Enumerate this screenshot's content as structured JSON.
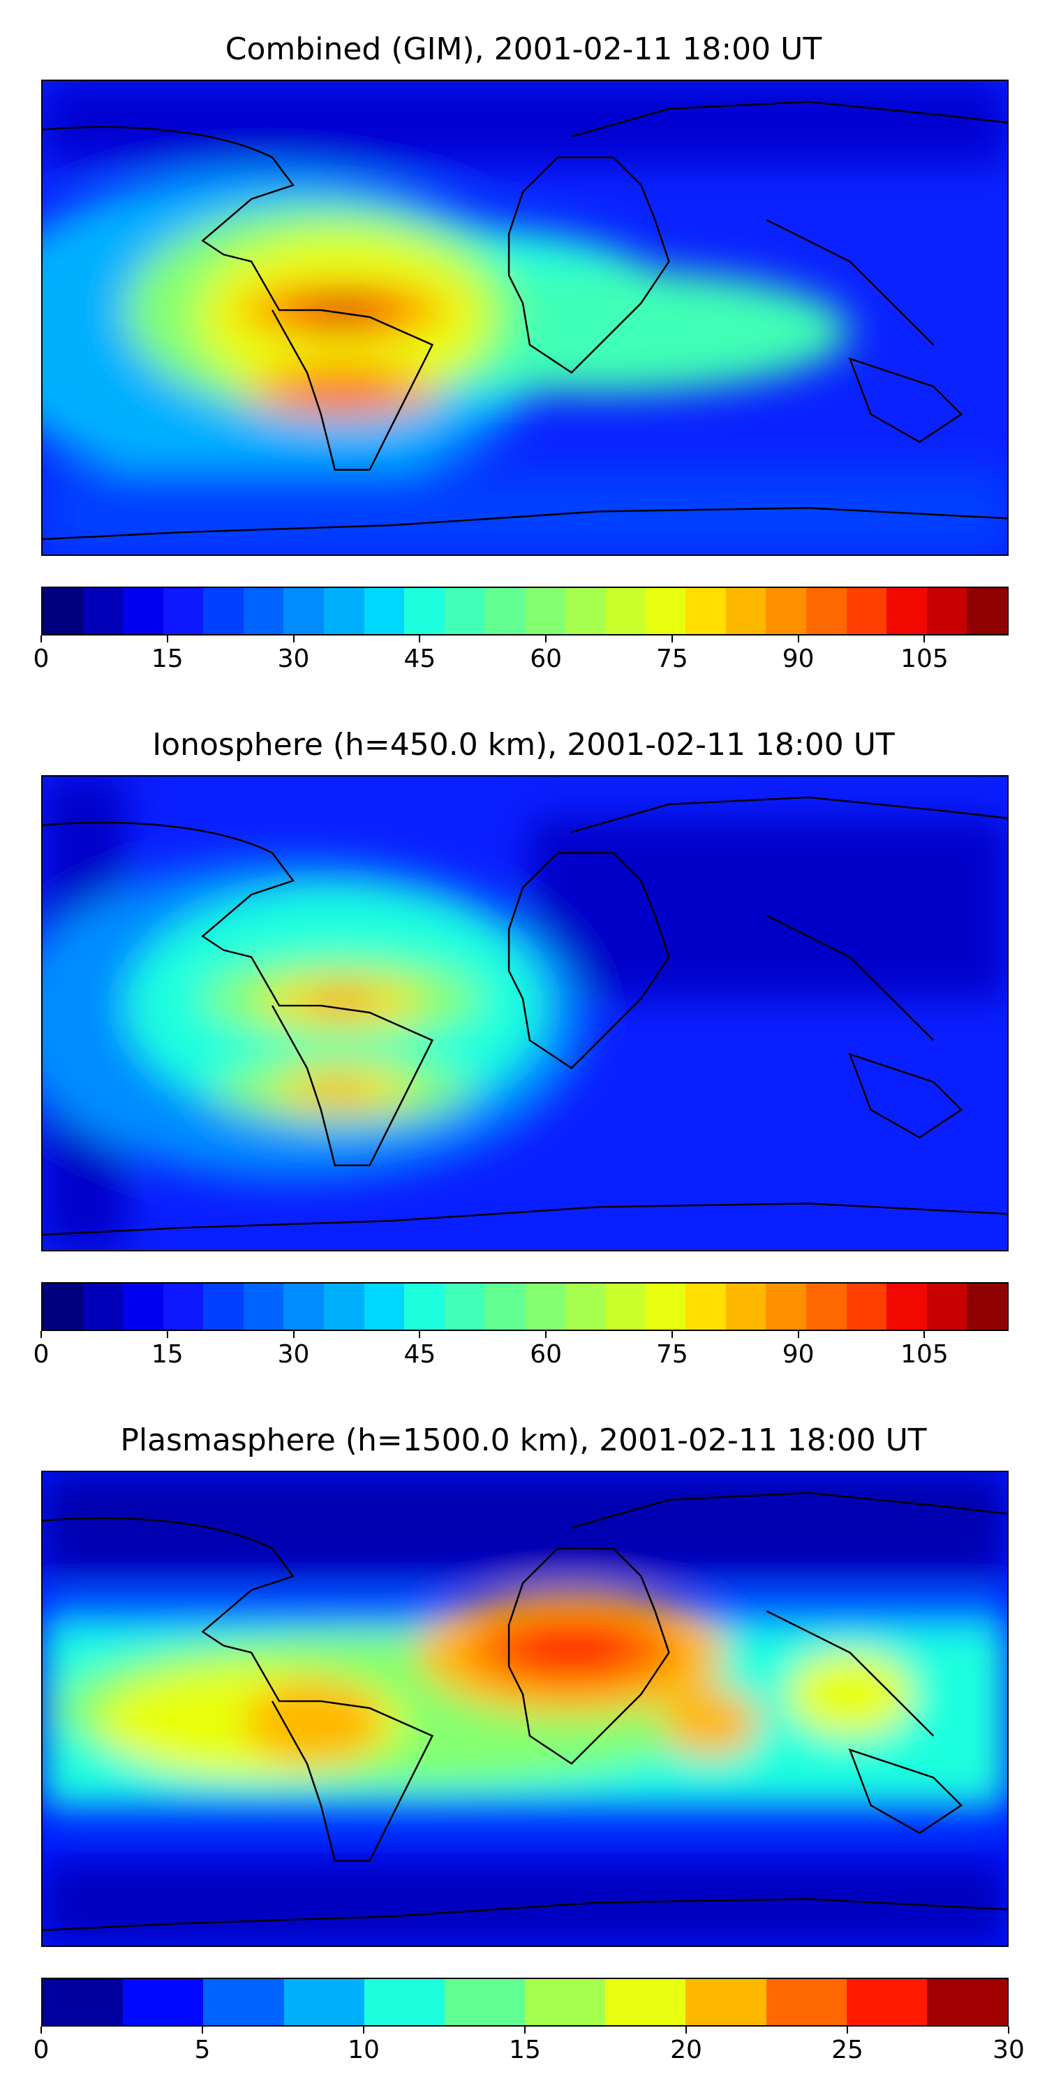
{
  "panels": [
    {
      "title": "Combined (GIM), 2001-02-11 18:00 UT",
      "map_name": "combined-gim-map",
      "background": "#1a2cff",
      "colorbar": {
        "colors": [
          "#00007f",
          "#0000b8",
          "#0000f1",
          "#0d18ff",
          "#0040ff",
          "#0064ff",
          "#008cff",
          "#00b0ff",
          "#00d8ff",
          "#1effde",
          "#41ffb6",
          "#62ff93",
          "#84ff70",
          "#a6ff4d",
          "#c9ff2a",
          "#e8ff0f",
          "#ffde00",
          "#ffb800",
          "#ff9000",
          "#ff6800",
          "#ff4000",
          "#f10800",
          "#c80000",
          "#8f0000"
        ],
        "ticks": [
          "0",
          "15",
          "30",
          "45",
          "60",
          "75",
          "90",
          "105"
        ],
        "tick_values": [
          0,
          15,
          30,
          45,
          60,
          75,
          90,
          105
        ],
        "vmin": 0,
        "vmax": 115
      }
    },
    {
      "title": "Ionosphere  (h=450.0 km), 2001-02-11 18:00 UT",
      "map_name": "ionosphere-map",
      "background": "#0a1fff",
      "colorbar": {
        "colors": [
          "#00007f",
          "#0000b8",
          "#0000f1",
          "#0d18ff",
          "#0040ff",
          "#0064ff",
          "#008cff",
          "#00b0ff",
          "#00d8ff",
          "#1effde",
          "#41ffb6",
          "#62ff93",
          "#84ff70",
          "#a6ff4d",
          "#c9ff2a",
          "#e8ff0f",
          "#ffde00",
          "#ffb800",
          "#ff9000",
          "#ff6800",
          "#ff4000",
          "#f10800",
          "#c80000",
          "#8f0000"
        ],
        "ticks": [
          "0",
          "15",
          "30",
          "45",
          "60",
          "75",
          "90",
          "105"
        ],
        "tick_values": [
          0,
          15,
          30,
          45,
          60,
          75,
          90,
          105
        ],
        "vmin": 0,
        "vmax": 115
      }
    },
    {
      "title": "Plasmasphere (h=1500.0 km), 2001-02-11 18:00 UT",
      "map_name": "plasmasphere-map",
      "background": "#0018ff",
      "colorbar": {
        "colors": [
          "#00009f",
          "#0008ff",
          "#0064ff",
          "#00b0ff",
          "#1effde",
          "#62ff93",
          "#a6ff4d",
          "#e8ff0f",
          "#ffb800",
          "#ff6800",
          "#ff1a00",
          "#a00000"
        ],
        "ticks": [
          "0",
          "5",
          "10",
          "15",
          "20",
          "25",
          "30"
        ],
        "tick_values": [
          0,
          5,
          10,
          15,
          20,
          25,
          30
        ],
        "vmin": 0,
        "vmax": 30
      }
    }
  ]
}
